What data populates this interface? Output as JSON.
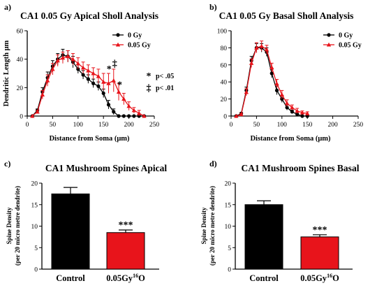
{
  "chart_data": [
    {
      "panel": "a)",
      "type": "line",
      "title": "CA1 0.05 Gy Apical Sholl Analysis",
      "xlabel": "Distance from Soma (μm)",
      "ylabel": "Dendritic Length μm",
      "xlim": [
        0,
        250
      ],
      "ylim": [
        0,
        60
      ],
      "xticks": [
        0,
        50,
        100,
        150,
        200,
        250
      ],
      "yticks": [
        0,
        20,
        40,
        60
      ],
      "legend_position": "top-right",
      "x": [
        10,
        20,
        30,
        40,
        50,
        60,
        70,
        80,
        90,
        100,
        110,
        120,
        130,
        140,
        150,
        160,
        170,
        180,
        190,
        200,
        210,
        220,
        230
      ],
      "series": [
        {
          "name": "0 Gy",
          "color": "#000000",
          "values": [
            0,
            4,
            17,
            27,
            35,
            40,
            43,
            42,
            38,
            33,
            29,
            26,
            23,
            21,
            16,
            8,
            3,
            0,
            0,
            0,
            0,
            0,
            0
          ],
          "errors": [
            0,
            1,
            3,
            4,
            4,
            4,
            4,
            4,
            4,
            3,
            3,
            3,
            3,
            3,
            3,
            3,
            2,
            0,
            0,
            0,
            0,
            0,
            0
          ]
        },
        {
          "name": "0.05 Gy",
          "color": "#e8141b",
          "values": [
            0,
            3,
            15,
            25,
            33,
            39,
            41,
            42,
            40,
            37,
            34,
            32,
            30,
            28,
            24,
            23,
            25,
            17,
            12,
            7,
            4,
            2,
            0
          ],
          "errors": [
            0,
            1,
            3,
            4,
            4,
            4,
            4,
            4,
            4,
            4,
            4,
            4,
            4,
            5,
            6,
            7,
            8,
            6,
            4,
            3,
            2,
            2,
            0
          ]
        }
      ],
      "annotations": [
        {
          "text": "*",
          "x": 161,
          "y": 31
        },
        {
          "text": "‡",
          "x": 172,
          "y": 35
        },
        {
          "text": "*",
          "x": 182,
          "y": 20
        }
      ],
      "significance_key": [
        {
          "symbol": "*",
          "label": "p< .05"
        },
        {
          "symbol": "‡",
          "label": "p< .01"
        }
      ]
    },
    {
      "panel": "b)",
      "type": "line",
      "title": "CA1 0.05 Gy Basal Sholl Analysis",
      "xlabel": "Distance from Soma (μm)",
      "ylabel": "",
      "xlim": [
        0,
        250
      ],
      "ylim": [
        0,
        100
      ],
      "xticks": [
        0,
        50,
        100,
        150,
        200,
        250
      ],
      "yticks": [
        0,
        20,
        40,
        60,
        80,
        100
      ],
      "legend_position": "top-right",
      "x": [
        10,
        20,
        30,
        40,
        50,
        60,
        70,
        80,
        90,
        100,
        110,
        120,
        130,
        140,
        150
      ],
      "series": [
        {
          "name": "0 Gy",
          "color": "#000000",
          "values": [
            0,
            3,
            30,
            65,
            80,
            80,
            75,
            50,
            30,
            20,
            10,
            5,
            2,
            0,
            0
          ],
          "errors": [
            0,
            1,
            4,
            5,
            5,
            5,
            5,
            5,
            5,
            4,
            3,
            2,
            1,
            0,
            0
          ]
        },
        {
          "name": "0.05 Gy",
          "color": "#e8141b",
          "values": [
            0,
            2,
            28,
            62,
            80,
            82,
            78,
            57,
            38,
            25,
            15,
            10,
            6,
            4,
            3
          ],
          "errors": [
            0,
            1,
            4,
            5,
            6,
            6,
            5,
            5,
            5,
            5,
            4,
            3,
            3,
            2,
            2
          ]
        }
      ]
    },
    {
      "panel": "c)",
      "type": "bar",
      "title": "CA1 Mushroom Spines Apical",
      "ylabel": "Spine Density",
      "ylabel_sub": "(per 20 micro metre dendrite)",
      "categories": [
        "Control",
        "0.05Gy"
      ],
      "category_superscript": [
        "",
        "16"
      ],
      "category_suffix": [
        "",
        "O"
      ],
      "values": [
        17.5,
        8.5
      ],
      "errors": [
        1.5,
        0.6
      ],
      "colors": [
        "#000000",
        "#e8141b"
      ],
      "ylim": [
        0,
        20
      ],
      "yticks": [
        0,
        5,
        10,
        15,
        20
      ],
      "annotation": "***"
    },
    {
      "panel": "d)",
      "type": "bar",
      "title": "CA1 Mushroom Spines Basal",
      "ylabel": "Spine Density",
      "ylabel_sub": "(per 20 micro metre dendrite)",
      "categories": [
        "Control",
        "0.05Gy"
      ],
      "category_superscript": [
        "",
        "16"
      ],
      "category_suffix": [
        "",
        "O"
      ],
      "values": [
        15.0,
        7.5
      ],
      "errors": [
        0.9,
        0.5
      ],
      "colors": [
        "#000000",
        "#e8141b"
      ],
      "ylim": [
        0,
        20
      ],
      "yticks": [
        0,
        5,
        10,
        15,
        20
      ],
      "annotation": "***"
    }
  ]
}
